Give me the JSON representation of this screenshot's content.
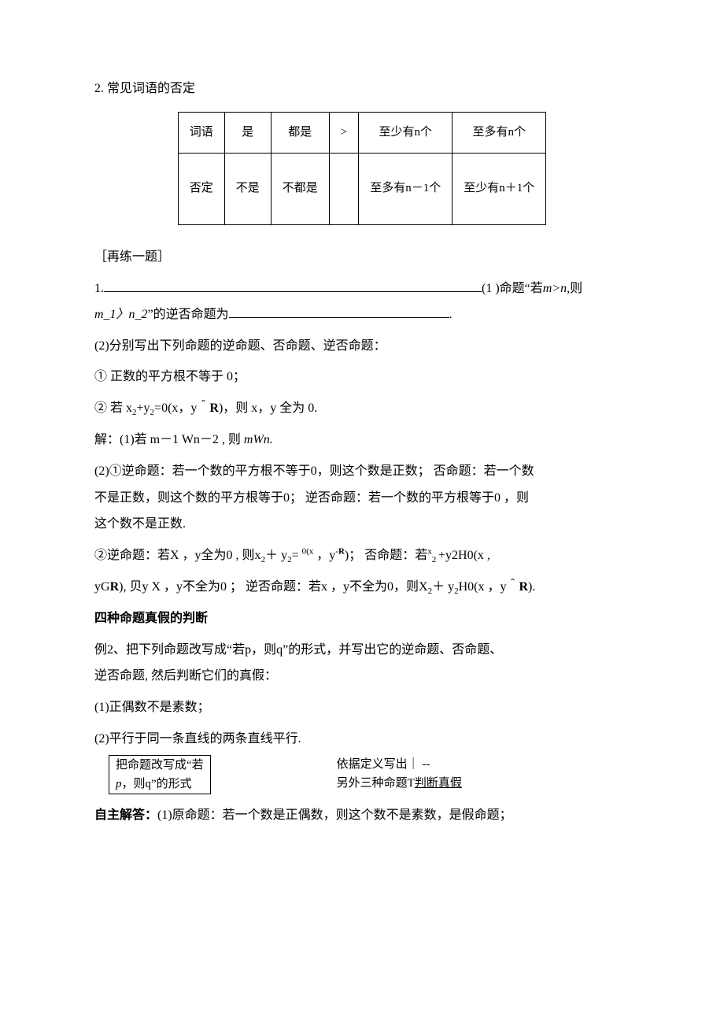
{
  "heading1": "2. 常见词语的否定",
  "table": {
    "r1": [
      "词语",
      "是",
      "都是",
      ">",
      "至少有n个",
      "至多有n个"
    ],
    "r2": [
      "否定",
      "不是",
      "不都是",
      "",
      "至多有n－1个",
      "至少有n＋1个"
    ]
  },
  "practice_label": "［再练一题］",
  "q1_num": "1.",
  "q1_tail": "(1 )命题“若",
  "q1_em1": "m>n,",
  "q1_em_then": "则",
  "q1_line2a": "m_1〉n_2",
  "q1_line2b": "”的逆否命题为",
  "q1_dot": ".",
  "q2": "(2)分别写出下列命题的逆命题、否命题、逆否命题：",
  "q2_1": "① 正数的平方根不等于 0；",
  "q2_2_pre": "②  若  x",
  "q2_2_mid": "+y",
  "q2_2_tail": "=0(x，y＾",
  "q2_2_bold": "R",
  "q2_2_end": ")，则  x，y 全为  0.",
  "ans1": "解：(1)若  m－1 Wn－2 , 则 ",
  "ans1_it": "mWn.",
  "ans2a": "(2)①逆命题：若一个数的平方根不等于0，则这个数是正数；  否命题：若一个数",
  "ans2b": "不是正数，则这个数的平方根等于0；  逆否命题：若一个数的平方根等于0 ，则",
  "ans2c": "这个数不是正数.",
  "ans3a_pre": "②逆命题：若X ，y全为0 , 则x",
  "ans3a_mid": "＋ y",
  "ans3a_eq": "= ",
  "ans3a_sup": "0(x",
  "ans3a_y": " ，y",
  "ans3a_r": "-R",
  "ans3a_tail": ")；  否命题：若",
  "ans3a_x": "x",
  "ans3a_sub2": "2 ",
  "ans3a_end": "+y2H0(x ,",
  "ans3b_pre": "yG",
  "ans3b_bold": "R",
  "ans3b_mid": "), 贝y X ，y不全为0 ；  逆否命题：若x ，y不全为0，则X",
  "ans3b_plus": "＋ y",
  "ans3b_tail": "H0(x ，y＾",
  "ans3b_bold2": "R",
  "ans3b_end": ").",
  "h2": "四种命题真假的判断",
  "ex2a": "例2、把下列命题改写成“若p，则q”的形式，并写出它的逆命题、否命题、",
  "ex2b": "逆否命题, 然后判断它们的真假：",
  "ex2_1": "(1)正偶数不是素数；",
  "ex2_2": "(2)平行于同一条直线的两条直线平行.",
  "box1a": "把命题改写成“若",
  "box1b_pre": "p",
  "box1b_tail": "，则q”的形式",
  "right1": "依据定义写出｜  --",
  "right2a": "另外三种命题T",
  "right2b": "判断真假",
  "final_a": "自主解答：",
  "final_b": "(1)原命题：若一个数是正偶数，则这个数不是素数，是假命题；"
}
